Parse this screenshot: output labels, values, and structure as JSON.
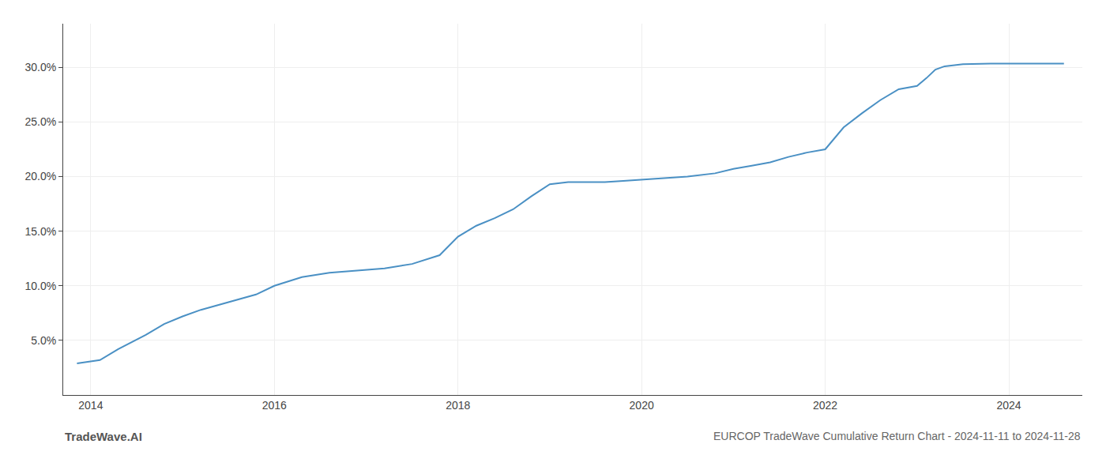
{
  "chart_data": {
    "type": "line",
    "title": "EURCOP TradeWave Cumulative Return Chart - 2024-11-11 to 2024-11-28",
    "annotations": [
      "TradeWave.AI"
    ],
    "x": [
      2013.85,
      2014.1,
      2014.3,
      2014.6,
      2014.8,
      2015.0,
      2015.2,
      2015.5,
      2015.8,
      2016.0,
      2016.3,
      2016.6,
      2016.9,
      2017.2,
      2017.5,
      2017.8,
      2018.0,
      2018.2,
      2018.4,
      2018.6,
      2018.8,
      2019.0,
      2019.2,
      2019.4,
      2019.6,
      2019.8,
      2020.0,
      2020.2,
      2020.5,
      2020.8,
      2021.0,
      2021.2,
      2021.4,
      2021.6,
      2021.8,
      2022.0,
      2022.1,
      2022.2,
      2022.4,
      2022.6,
      2022.8,
      2023.0,
      2023.1,
      2023.2,
      2023.3,
      2023.5,
      2023.8,
      2024.0,
      2024.3,
      2024.6
    ],
    "values": [
      2.9,
      3.2,
      4.2,
      5.5,
      6.5,
      7.2,
      7.8,
      8.5,
      9.2,
      10.0,
      10.8,
      11.2,
      11.4,
      11.6,
      12.0,
      12.8,
      14.5,
      15.5,
      16.2,
      17.0,
      18.2,
      19.3,
      19.5,
      19.5,
      19.5,
      19.6,
      19.7,
      19.8,
      20.0,
      20.3,
      20.7,
      21.0,
      21.3,
      21.8,
      22.2,
      22.5,
      23.5,
      24.5,
      25.8,
      27.0,
      28.0,
      28.3,
      29.0,
      29.8,
      30.1,
      30.3,
      30.35,
      30.35,
      30.35,
      30.35
    ],
    "color": "#4a90c4",
    "xlim": [
      2013.7,
      2024.8
    ],
    "xticks": [
      2014,
      2016,
      2018,
      2020,
      2022,
      2024
    ],
    "ylim": [
      0,
      34
    ],
    "yticks": [
      {
        "value": 5.0,
        "label": "5.0%"
      },
      {
        "value": 10.0,
        "label": "10.0%"
      },
      {
        "value": 15.0,
        "label": "15.0%"
      },
      {
        "value": 20.0,
        "label": "20.0%"
      },
      {
        "value": 25.0,
        "label": "25.0%"
      },
      {
        "value": 30.0,
        "label": "30.0%"
      }
    ],
    "grid": true
  }
}
